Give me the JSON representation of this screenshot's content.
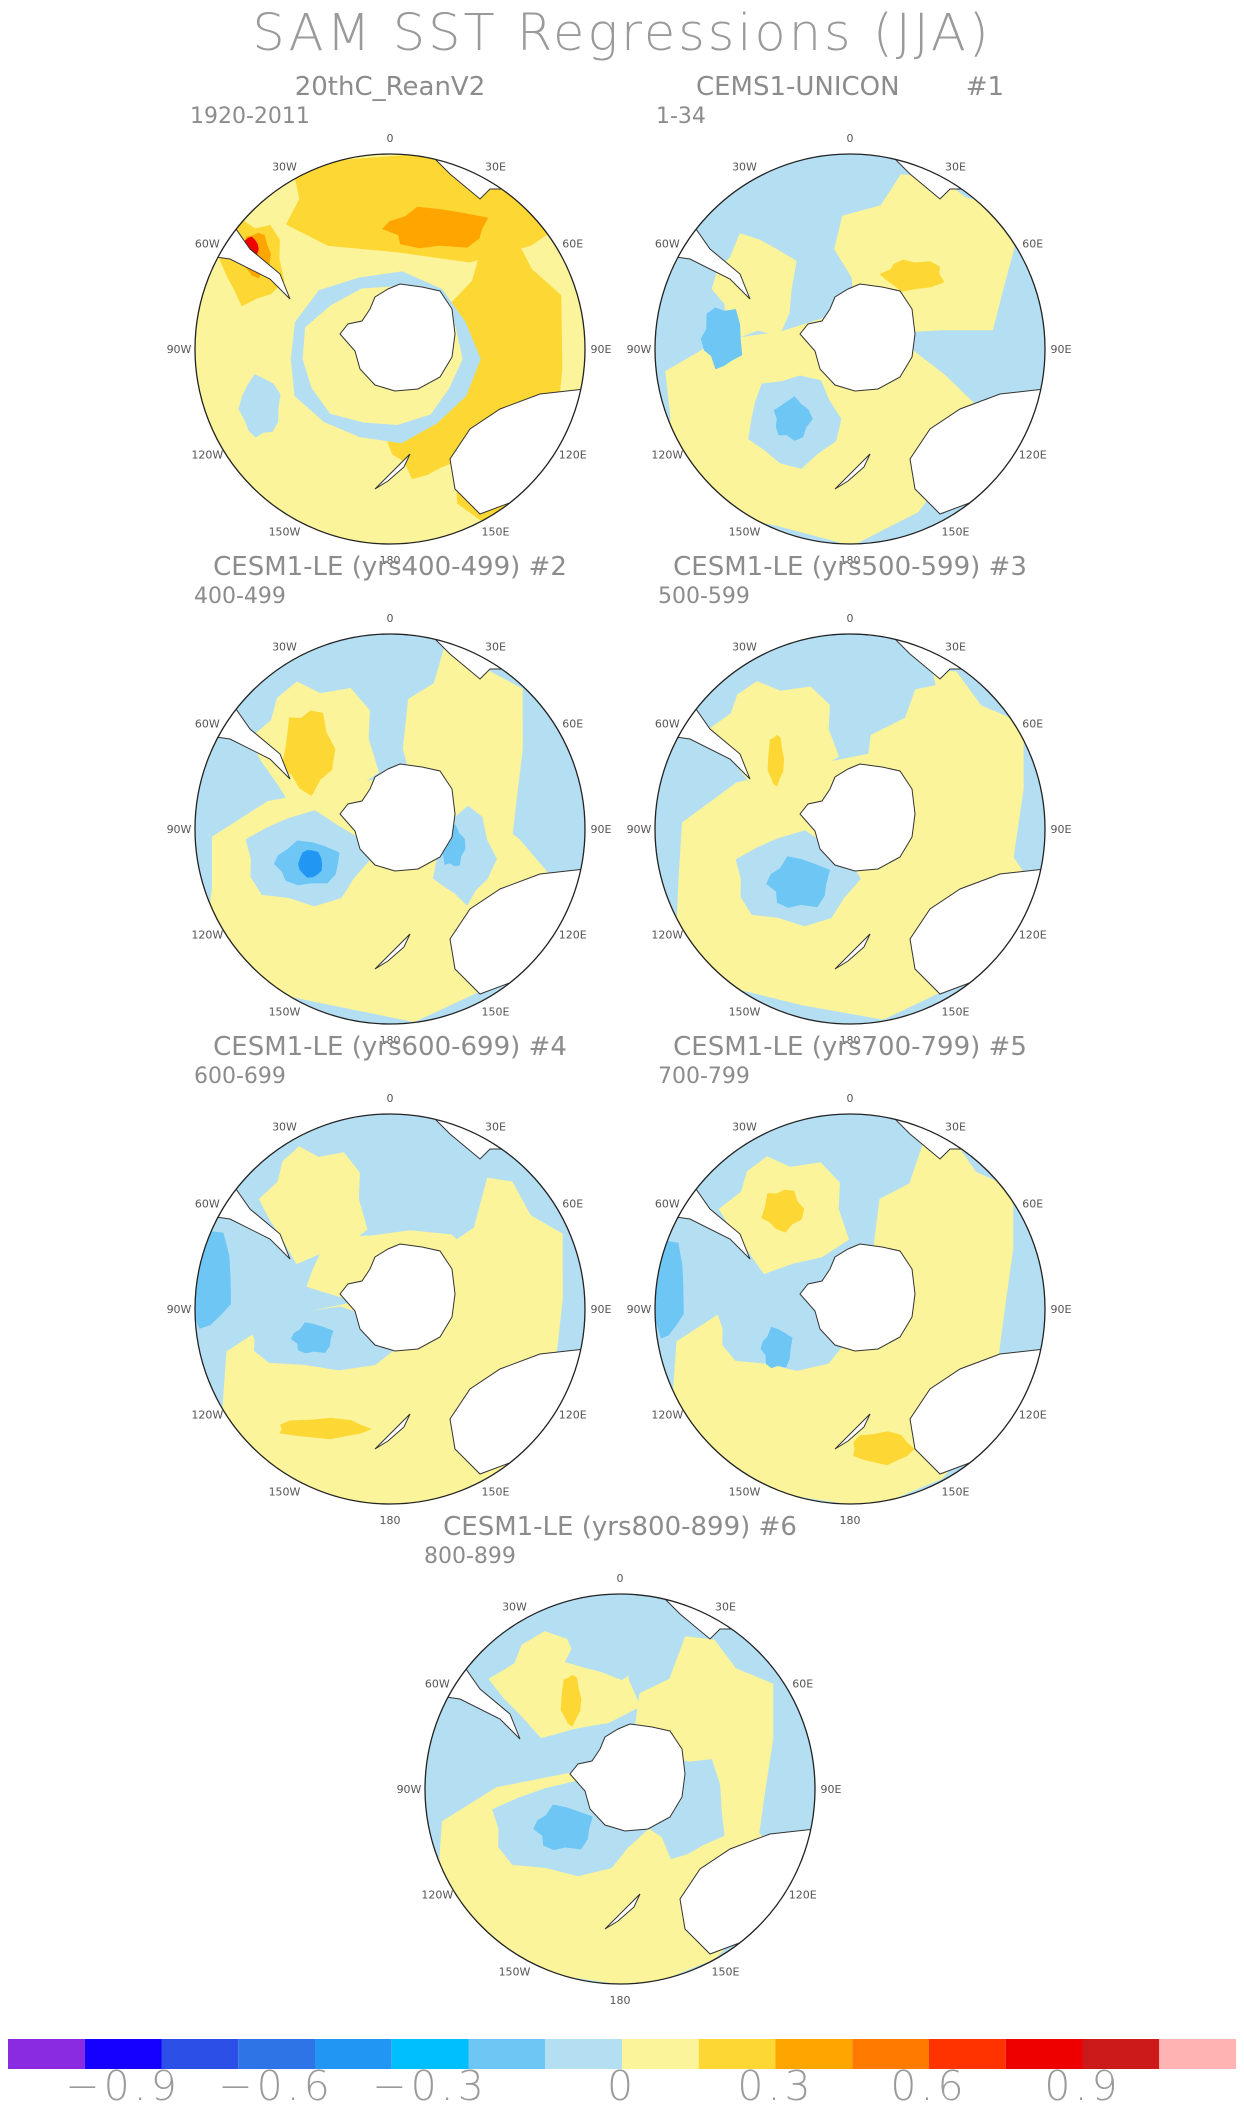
{
  "title": "SAM SST Regressions (JJA)",
  "panels": [
    {
      "title": "20thC_ReanV2",
      "period": "1920-2011",
      "lon_labels": [
        "0",
        "30E",
        "60E",
        "90E",
        "120E",
        "150E",
        "180",
        "150W",
        "120W",
        "90W",
        "60W",
        "30W"
      ],
      "pattern": "reanalysis"
    },
    {
      "title": "CEMS1-UNICON        #1",
      "period": "1-34",
      "lon_labels": [
        "0",
        "30E",
        "60E",
        "90E",
        "120E",
        "150E",
        "180",
        "150W",
        "120W",
        "90W",
        "60W",
        "30W"
      ],
      "pattern": "unicon"
    },
    {
      "title": "CESM1-LE (yrs400-499) #2",
      "period": "400-499",
      "lon_labels": [
        "0",
        "30E",
        "60E",
        "90E",
        "120E",
        "150E",
        "180",
        "150W",
        "120W",
        "90W",
        "60W",
        "30W"
      ],
      "pattern": "le2"
    },
    {
      "title": "CESM1-LE (yrs500-599) #3",
      "period": "500-599",
      "lon_labels": [
        "0",
        "30E",
        "60E",
        "90E",
        "120E",
        "150E",
        "180",
        "150W",
        "120W",
        "90W",
        "60W",
        "30W"
      ],
      "pattern": "le3"
    },
    {
      "title": "CESM1-LE (yrs600-699) #4",
      "period": "600-699",
      "lon_labels": [
        "0",
        "30E",
        "60E",
        "90E",
        "120E",
        "150E",
        "180",
        "150W",
        "120W",
        "90W",
        "60W",
        "30W"
      ],
      "pattern": "le4"
    },
    {
      "title": "CESM1-LE (yrs700-799) #5",
      "period": "700-799",
      "lon_labels": [
        "0",
        "30E",
        "60E",
        "90E",
        "120E",
        "150E",
        "180",
        "150W",
        "120W",
        "90W",
        "60W",
        "30W"
      ],
      "pattern": "le5"
    },
    {
      "title": "CESM1-LE (yrs800-899) #6",
      "period": "800-899",
      "lon_labels": [
        "0",
        "30E",
        "60E",
        "90E",
        "120E",
        "150E",
        "180",
        "150W",
        "120W",
        "90W",
        "60W",
        "30W"
      ],
      "pattern": "le6"
    }
  ],
  "colorbar": {
    "colors": [
      "#8a2be2",
      "#1500ff",
      "#2c4fe8",
      "#2f74e6",
      "#2196f3",
      "#00bfff",
      "#6ec6f5",
      "#b4dff3",
      "#fbf49a",
      "#fdd835",
      "#ffa500",
      "#ff7b00",
      "#ff3300",
      "#ee0000",
      "#cc1a1a",
      "#ffb3b3"
    ],
    "tick_labels": [
      "-0.9",
      "-0.6",
      "-0.3",
      "0",
      "0.3",
      "0.6",
      "0.9"
    ]
  },
  "palette": {
    "land": "#ffffff",
    "coast": "#333333",
    "neg_light": "#b4dff3",
    "neg_mid": "#6ec6f5",
    "neg_strong": "#2196f3",
    "pos_light": "#fbf49a",
    "pos_mid": "#fdd835",
    "pos_strong": "#ffa500",
    "pos_max": "#ee0000"
  }
}
